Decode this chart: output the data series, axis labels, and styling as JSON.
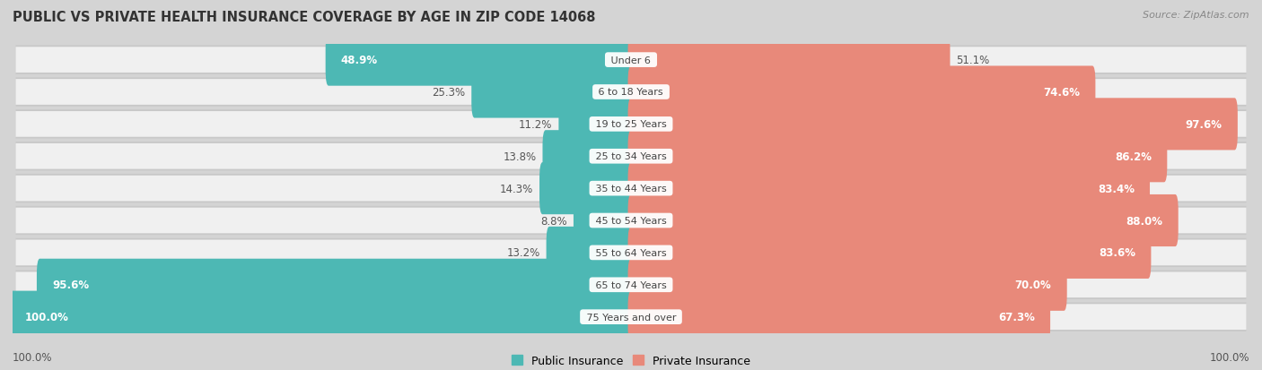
{
  "title": "PUBLIC VS PRIVATE HEALTH INSURANCE COVERAGE BY AGE IN ZIP CODE 14068",
  "source": "Source: ZipAtlas.com",
  "categories": [
    "Under 6",
    "6 to 18 Years",
    "19 to 25 Years",
    "25 to 34 Years",
    "35 to 44 Years",
    "45 to 54 Years",
    "55 to 64 Years",
    "65 to 74 Years",
    "75 Years and over"
  ],
  "public": [
    48.9,
    25.3,
    11.2,
    13.8,
    14.3,
    8.8,
    13.2,
    95.6,
    100.0
  ],
  "private": [
    51.1,
    74.6,
    97.6,
    86.2,
    83.4,
    88.0,
    83.6,
    70.0,
    67.3
  ],
  "public_color": "#4db8b4",
  "private_color": "#e8897a",
  "background_color": "#d4d4d4",
  "row_light_color": "#f0f0f0",
  "row_shadow_color": "#c8c8c8",
  "max_value": 100.0,
  "bar_height": 0.62,
  "title_fontsize": 10.5,
  "label_fontsize": 8.5,
  "category_fontsize": 8.0,
  "legend_fontsize": 9,
  "source_fontsize": 8
}
